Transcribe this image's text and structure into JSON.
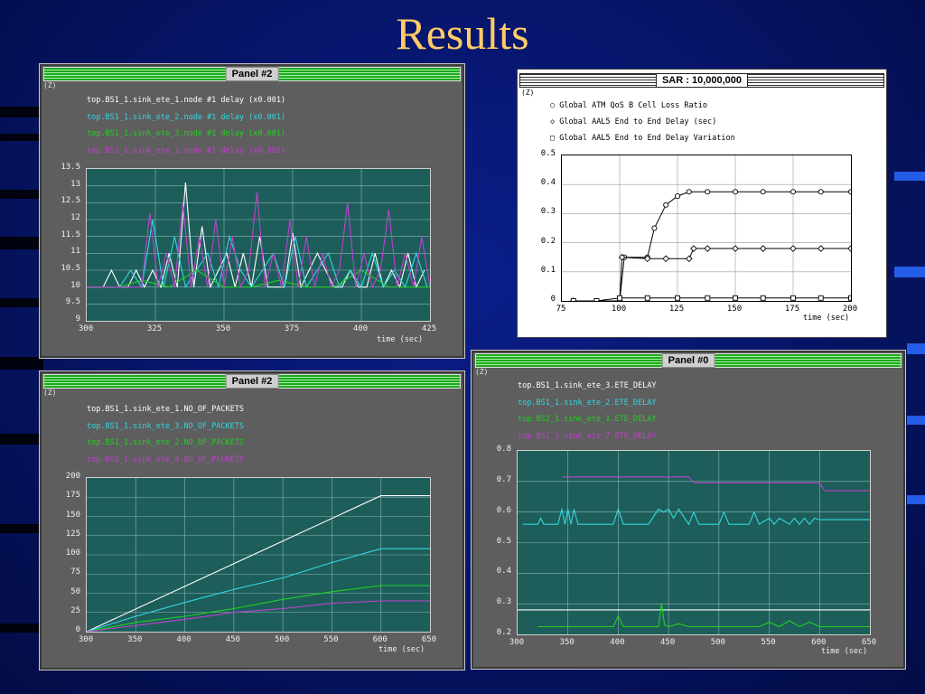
{
  "slide": {
    "title": "Results"
  },
  "panels": [
    {
      "id": "p1",
      "title": "Panel #2",
      "zoom_label": "(Z)",
      "legend": [
        {
          "text": "top.BS1_1.sink_ete_1.node #1 delay (x0.001)",
          "color": "#ffffff"
        },
        {
          "text": "top.BS1_1.sink_ete_2.node #1 delay (x0.001)",
          "color": "#33d6e0"
        },
        {
          "text": "top.BS1_1.sink_ete_3.node #1 delay (x0.001)",
          "color": "#22d022"
        },
        {
          "text": "top.BS2_1.sink_ete_1.node #1 delay (x0.001)",
          "color": "#c040d0"
        }
      ],
      "x_ticks": [
        "300",
        "325",
        "350",
        "375",
        "400",
        "425"
      ],
      "y_ticks": [
        "13.5",
        "13",
        "12.5",
        "12",
        "11.5",
        "11",
        "10.5",
        "10",
        "9.5",
        "9"
      ],
      "x_title": "time (sec)"
    },
    {
      "id": "p2",
      "title": "Panel #2",
      "zoom_label": "(Z)",
      "legend": [
        {
          "text": "top.BS1_1.sink_ete_1.NO_OF_PACKETS",
          "color": "#ffffff"
        },
        {
          "text": "top.BS1_1.sink_ete_3.NO_OF_PACKETS",
          "color": "#33d6e0"
        },
        {
          "text": "top.BS1_1.sink_ete_2.NO_OF_PACKETS",
          "color": "#22d022"
        },
        {
          "text": "top.BS1_1.sink_ete_4.NO_OF_PACKETS",
          "color": "#c040d0"
        }
      ],
      "x_ticks": [
        "300",
        "350",
        "400",
        "450",
        "500",
        "550",
        "600",
        "650"
      ],
      "y_ticks": [
        "200",
        "175",
        "150",
        "125",
        "100",
        "75",
        "50",
        "25",
        "0"
      ],
      "x_title": "time (sec)"
    },
    {
      "id": "p3",
      "title": "Panel #0",
      "zoom_label": "(Z)",
      "legend": [
        {
          "text": "top.BS1_1.sink_ete_3.ETE_DELAY",
          "color": "#ffffff"
        },
        {
          "text": "top.BS1_1.sink_ete_2.ETE_DELAY",
          "color": "#33d6e0"
        },
        {
          "text": "top.BS2_1.sink_ete_1.ETE_DELAY",
          "color": "#22d022"
        },
        {
          "text": "top.BS1_1.sink_ete_7.ETE_DELAY",
          "color": "#c040d0"
        }
      ],
      "x_ticks": [
        "300",
        "350",
        "400",
        "450",
        "500",
        "550",
        "600",
        "650"
      ],
      "y_ticks": [
        "0.8",
        "0.7",
        "0.6",
        "0.5",
        "0.4",
        "0.3",
        "0.2"
      ],
      "x_title": "time (sec)"
    }
  ],
  "sar": {
    "title": "SAR : 10,000,000",
    "zoom_label": "(Z)",
    "legend": [
      {
        "text": "Global ATM QoS B Cell Loss Ratio",
        "marker": "circle"
      },
      {
        "text": "Global AAL5 End to End Delay (sec)",
        "marker": "diamond"
      },
      {
        "text": "Global AAL5 End to End Delay Variation",
        "marker": "square"
      }
    ],
    "x_ticks": [
      "75",
      "100",
      "125",
      "150",
      "175",
      "200"
    ],
    "y_ticks": [
      "0.5",
      "0.4",
      "0.3",
      "0.2",
      "0.1",
      "0"
    ],
    "x_title": "time (sec)"
  },
  "chart_data": [
    {
      "type": "line",
      "xlim": [
        300,
        425
      ],
      "ylim": [
        9,
        13.5
      ],
      "grid": true,
      "series": [
        {
          "color": "#ffffff",
          "x": [
            300,
            303,
            306,
            309,
            312,
            315,
            318,
            321,
            324,
            327,
            330,
            333,
            336,
            339,
            342,
            345,
            348,
            351,
            354,
            357,
            360,
            363,
            366,
            369,
            372,
            375,
            378,
            381,
            384,
            387,
            390,
            393,
            396,
            399,
            402,
            405,
            408,
            411,
            414,
            417,
            420,
            423
          ],
          "y": [
            10,
            10,
            10,
            10.5,
            10,
            10,
            10.5,
            10,
            10.5,
            10,
            11,
            10,
            13.1,
            10,
            11.8,
            10,
            10.5,
            11,
            10,
            11,
            10,
            11.5,
            10,
            10,
            10,
            11.6,
            10,
            10.5,
            11,
            10.5,
            10,
            10,
            10.5,
            10,
            10,
            11,
            10,
            10.5,
            10,
            11,
            10,
            10.5
          ]
        },
        {
          "color": "#33d6e0",
          "x": [
            300,
            304,
            308,
            312,
            316,
            320,
            324,
            328,
            332,
            336,
            340,
            344,
            348,
            352,
            356,
            360,
            364,
            368,
            372,
            376,
            380,
            384,
            388,
            392,
            396,
            400,
            404,
            408,
            412,
            416,
            420,
            424
          ],
          "y": [
            10,
            10,
            10,
            10,
            10.5,
            10,
            12,
            10,
            11.5,
            10,
            10.5,
            11,
            10,
            11.5,
            10.5,
            10,
            10.5,
            11,
            10,
            11.5,
            10,
            10.5,
            11,
            10,
            10.5,
            10,
            11,
            10,
            10.5,
            10,
            11,
            10
          ]
        },
        {
          "color": "#22d022",
          "x": [
            300,
            312,
            320,
            330,
            340,
            350,
            360,
            370,
            380,
            390,
            400,
            410,
            425
          ],
          "y": [
            10,
            10,
            10.2,
            10,
            10.5,
            10,
            10,
            10.2,
            10,
            10,
            10.5,
            10,
            10
          ]
        },
        {
          "color": "#c040d0",
          "x": [
            300,
            305,
            310,
            315,
            320,
            323,
            326,
            329,
            332,
            335,
            338,
            341,
            344,
            347,
            350,
            353,
            356,
            359,
            362,
            365,
            368,
            371,
            374,
            377,
            380,
            383,
            386,
            389,
            392,
            395,
            398,
            401,
            404,
            407,
            410,
            413,
            416,
            419,
            422,
            425
          ],
          "y": [
            10,
            10,
            10,
            10,
            10,
            12.2,
            10,
            11,
            10,
            12.5,
            10,
            11.5,
            10,
            12,
            10,
            11.5,
            10,
            10.5,
            12.8,
            10,
            11,
            10,
            12,
            10,
            11.5,
            10,
            11,
            10,
            10.5,
            12.5,
            10,
            11,
            10,
            10.5,
            12.3,
            10,
            11,
            10,
            11.5,
            10
          ]
        }
      ]
    },
    {
      "type": "line",
      "xlim": [
        300,
        650
      ],
      "ylim": [
        0,
        200
      ],
      "grid": true,
      "series": [
        {
          "color": "#ffffff",
          "x": [
            300,
            600,
            650
          ],
          "y": [
            0,
            177,
            177
          ]
        },
        {
          "color": "#33d6e0",
          "x": [
            300,
            350,
            400,
            450,
            500,
            550,
            600,
            650
          ],
          "y": [
            0,
            20,
            38,
            55,
            70,
            90,
            108,
            108
          ]
        },
        {
          "color": "#22d022",
          "x": [
            300,
            350,
            400,
            450,
            500,
            550,
            600,
            650
          ],
          "y": [
            0,
            12,
            20,
            30,
            42,
            52,
            60,
            60
          ]
        },
        {
          "color": "#c040d0",
          "x": [
            300,
            350,
            400,
            450,
            500,
            550,
            600,
            650
          ],
          "y": [
            0,
            8,
            16,
            25,
            30,
            37,
            40,
            40
          ]
        }
      ]
    },
    {
      "type": "line",
      "xlim": [
        300,
        650
      ],
      "ylim": [
        0.2,
        0.8
      ],
      "grid": true,
      "series": [
        {
          "color": "#ffffff",
          "x": [
            300,
            650
          ],
          "y": [
            0.28,
            0.28
          ]
        },
        {
          "color": "#33d6e0",
          "x": [
            305,
            320,
            323,
            326,
            340,
            344,
            347,
            350,
            353,
            356,
            360,
            395,
            400,
            405,
            430,
            440,
            445,
            450,
            455,
            460,
            470,
            475,
            480,
            500,
            505,
            510,
            530,
            535,
            540,
            550,
            555,
            560,
            570,
            575,
            580,
            585,
            590,
            595,
            600,
            650
          ],
          "y": [
            0.56,
            0.56,
            0.58,
            0.56,
            0.56,
            0.61,
            0.56,
            0.61,
            0.56,
            0.61,
            0.56,
            0.56,
            0.61,
            0.56,
            0.56,
            0.61,
            0.6,
            0.61,
            0.58,
            0.61,
            0.56,
            0.6,
            0.56,
            0.56,
            0.6,
            0.56,
            0.56,
            0.6,
            0.56,
            0.58,
            0.56,
            0.58,
            0.56,
            0.58,
            0.56,
            0.58,
            0.56,
            0.58,
            0.575,
            0.575
          ]
        },
        {
          "color": "#22d022",
          "x": [
            320,
            395,
            400,
            405,
            440,
            443,
            446,
            450,
            460,
            470,
            500,
            540,
            550,
            560,
            570,
            580,
            590,
            600,
            650
          ],
          "y": [
            0.225,
            0.225,
            0.26,
            0.225,
            0.225,
            0.3,
            0.23,
            0.225,
            0.235,
            0.225,
            0.225,
            0.225,
            0.24,
            0.225,
            0.245,
            0.225,
            0.24,
            0.225,
            0.225
          ]
        },
        {
          "color": "#c040d0",
          "x": [
            345,
            470,
            475,
            600,
            605,
            650
          ],
          "y": [
            0.715,
            0.715,
            0.695,
            0.695,
            0.67,
            0.67
          ]
        }
      ]
    },
    {
      "type": "line",
      "xlim": [
        75,
        200
      ],
      "ylim": [
        0,
        0.5
      ],
      "grid": true,
      "series": [
        {
          "name": "Global ATM QoS B Cell Loss Ratio",
          "marker": "circle",
          "x": [
            80,
            90,
            100,
            102,
            112,
            115,
            120,
            125,
            130,
            138,
            150,
            162,
            175,
            187,
            200
          ],
          "y": [
            0,
            0,
            0,
            0.15,
            0.15,
            0.25,
            0.33,
            0.36,
            0.375,
            0.375,
            0.375,
            0.375,
            0.375,
            0.375,
            0.375
          ]
        },
        {
          "name": "Global AAL5 End to End Delay (sec)",
          "marker": "diamond",
          "x": [
            80,
            100,
            101,
            112,
            120,
            130,
            132,
            138,
            150,
            162,
            175,
            187,
            200
          ],
          "y": [
            0,
            0,
            0.15,
            0.145,
            0.145,
            0.145,
            0.18,
            0.18,
            0.18,
            0.18,
            0.18,
            0.18,
            0.18
          ]
        },
        {
          "name": "Global AAL5 End to End Delay Variation",
          "marker": "square",
          "x": [
            80,
            90,
            100,
            112,
            125,
            138,
            150,
            162,
            175,
            187,
            200
          ],
          "y": [
            0,
            0,
            0.01,
            0.01,
            0.01,
            0.01,
            0.01,
            0.01,
            0.01,
            0.01,
            0.01
          ]
        }
      ]
    }
  ]
}
